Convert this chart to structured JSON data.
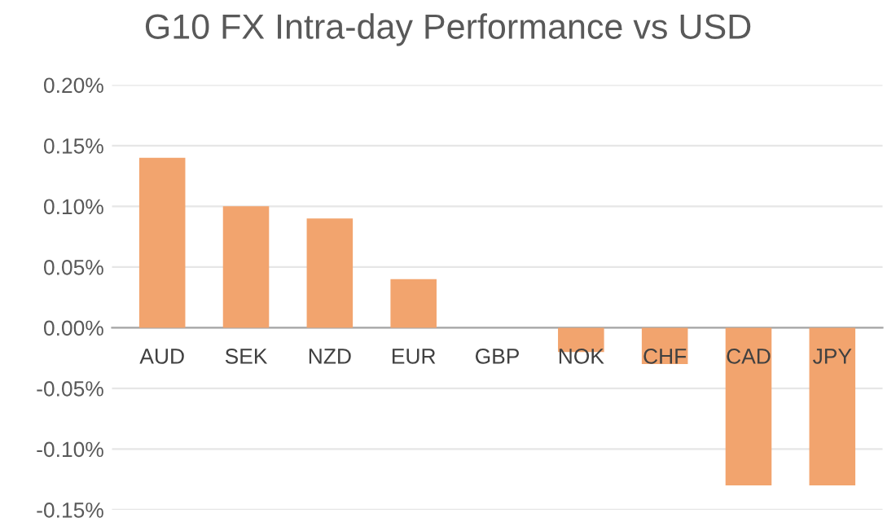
{
  "chart_data": {
    "type": "bar",
    "title": "G10 FX Intra-day Performance vs USD",
    "categories": [
      "AUD",
      "SEK",
      "NZD",
      "EUR",
      "GBP",
      "NOK",
      "CHF",
      "CAD",
      "JPY"
    ],
    "values": [
      0.14,
      0.1,
      0.09,
      0.04,
      0.0,
      -0.02,
      -0.03,
      -0.13,
      -0.13
    ],
    "color": "#f2a46e",
    "ylim": [
      -0.15,
      0.2
    ],
    "yticks": [
      {
        "value": -0.15,
        "label": "-0.15%"
      },
      {
        "value": -0.1,
        "label": "-0.10%"
      },
      {
        "value": -0.05,
        "label": "-0.05%"
      },
      {
        "value": 0.0,
        "label": "0.00%"
      },
      {
        "value": 0.05,
        "label": "0.05%"
      },
      {
        "value": 0.1,
        "label": "0.10%"
      },
      {
        "value": 0.15,
        "label": "0.15%"
      },
      {
        "value": 0.2,
        "label": "0.20%"
      }
    ],
    "grid": "y"
  }
}
